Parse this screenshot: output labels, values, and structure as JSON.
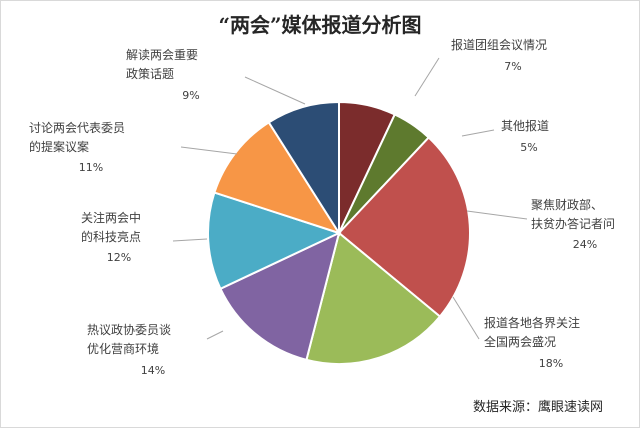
{
  "title": "“两会”媒体报道分析图",
  "source": "数据来源：鹰眼速读网",
  "chart_data": {
    "type": "pie",
    "title": "“两会”媒体报道分析图",
    "start_angle_deg": 0,
    "direction": "clockwise",
    "slices": [
      {
        "label": [
          "报道团组会议情况"
        ],
        "pct_text": "7%",
        "value": 7,
        "color": "#7B2C2C"
      },
      {
        "label": [
          "其他报道"
        ],
        "pct_text": "5%",
        "value": 5,
        "color": "#5E7A2E"
      },
      {
        "label": [
          "聚焦财政部、",
          "扶贫办答记者问"
        ],
        "pct_text": "24%",
        "value": 24,
        "color": "#C0504D"
      },
      {
        "label": [
          "报道各地各界关注",
          "全国两会盛况"
        ],
        "pct_text": "18%",
        "value": 18,
        "color": "#9BBB59"
      },
      {
        "label": [
          "热议政协委员谈",
          "优化营商环境"
        ],
        "pct_text": "14%",
        "value": 14,
        "color": "#8064A2"
      },
      {
        "label": [
          "关注两会中",
          "的科技亮点"
        ],
        "pct_text": "12%",
        "value": 12,
        "color": "#4BACC6"
      },
      {
        "label": [
          "讨论两会代表委员",
          "的提案议案"
        ],
        "pct_text": "11%",
        "value": 11,
        "color": "#F79646"
      },
      {
        "label": [
          "解读两会重要",
          "政策话题"
        ],
        "pct_text": "9%",
        "value": 9,
        "color": "#2C4D75"
      }
    ]
  }
}
